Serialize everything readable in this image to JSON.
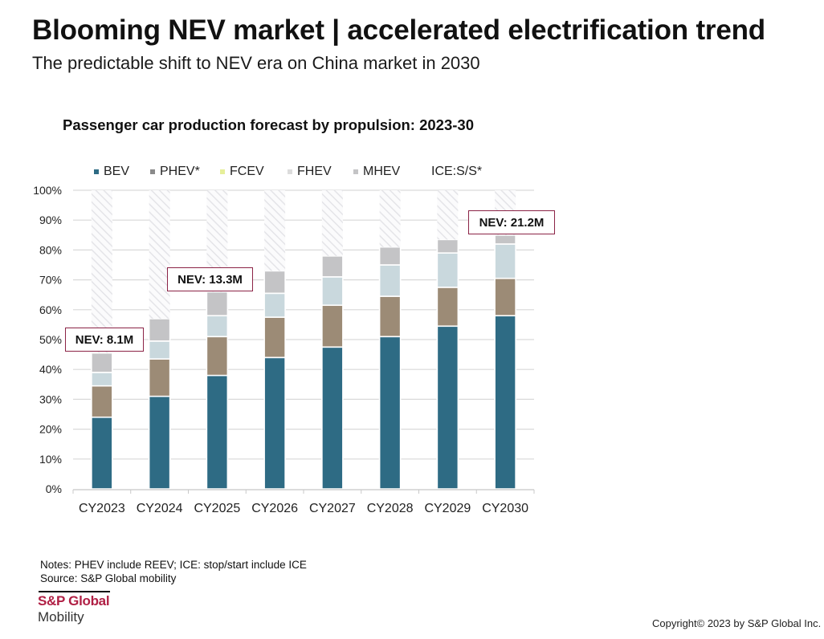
{
  "page": {
    "title": "Blooming NEV market | accelerated electrification trend",
    "subtitle": "The predictable shift to NEV era on China market in 2030"
  },
  "callouts": [
    {
      "label": "NEV: 8.1M",
      "category": "CY2023"
    },
    {
      "label": "NEV: 13.3M",
      "category": "CY2025"
    },
    {
      "label": "NEV: 21.2M",
      "category": "CY2030"
    }
  ],
  "footer": {
    "notes": "Notes: PHEV include REEV; ICE: stop/start include ICE",
    "source": "Source: S&P Global mobility",
    "logo_main": "S&P Global",
    "logo_sub": "Mobility",
    "copyright": "Copyright© 2023 by S&P Global Inc."
  },
  "colors": {
    "BEV": "#2e6b84",
    "PHEV": "#9c8b76",
    "FCEV": "#e6ef9a",
    "FHEV": "#c9d8dd",
    "MHEV": "#c4c4c6",
    "ICE": "#f0f0f2",
    "callout_border": "#8b2346",
    "brand": "#b01f44"
  },
  "chart_data": {
    "type": "bar",
    "stacked": true,
    "title": "Passenger car production forecast by propulsion: 2023-30",
    "xlabel": "",
    "ylabel": "",
    "ylim": [
      0,
      100
    ],
    "yticks": [
      "0%",
      "10%",
      "20%",
      "30%",
      "40%",
      "50%",
      "60%",
      "70%",
      "80%",
      "90%",
      "100%"
    ],
    "grid": true,
    "legend_position": "top",
    "categories": [
      "CY2023",
      "CY2024",
      "CY2025",
      "CY2026",
      "CY2027",
      "CY2028",
      "CY2029",
      "CY2030"
    ],
    "series": [
      {
        "name": "BEV",
        "values": [
          24,
          31,
          38,
          44,
          47.5,
          51,
          54.5,
          58
        ]
      },
      {
        "name": "PHEV*",
        "values": [
          10.5,
          12.5,
          13,
          13.5,
          14,
          13.5,
          13,
          12.5
        ]
      },
      {
        "name": "FCEV",
        "values": [
          0,
          0,
          0,
          0,
          0,
          0,
          0,
          0
        ]
      },
      {
        "name": "FHEV",
        "values": [
          4.5,
          6,
          7,
          8,
          9.5,
          10.5,
          11.5,
          11.5
        ]
      },
      {
        "name": "MHEV",
        "values": [
          6.5,
          7.5,
          8,
          7.5,
          7,
          6,
          4.5,
          3
        ]
      },
      {
        "name": "ICE:S/S*",
        "values": [
          54.5,
          43,
          34,
          27,
          22,
          19,
          16.5,
          15
        ]
      }
    ]
  }
}
